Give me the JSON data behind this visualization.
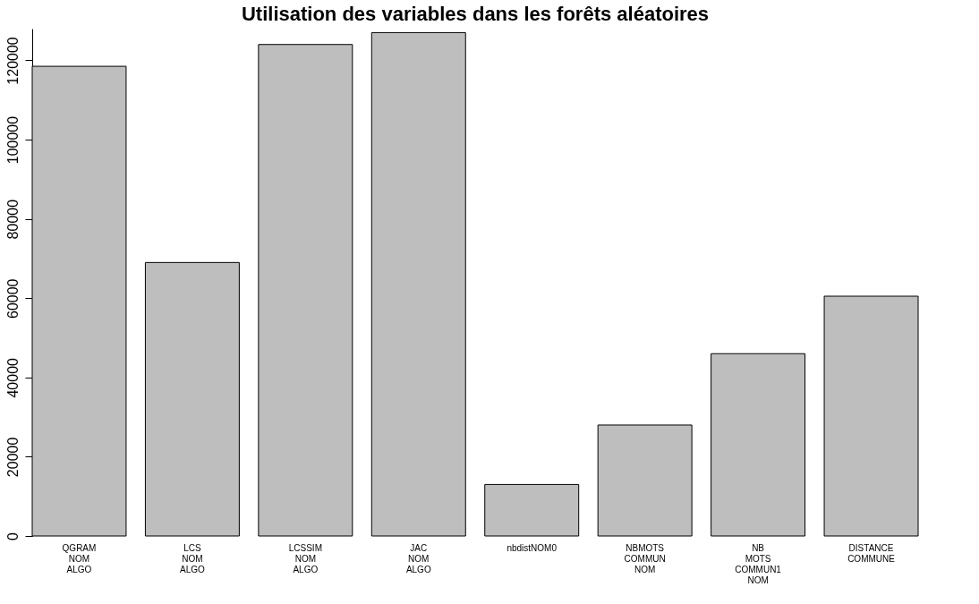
{
  "chart_data": {
    "type": "bar",
    "title": "Utilisation des variables dans les forêts aléatoires",
    "categories": [
      "QGRAM\nNOM\nALGO",
      "LCS\nNOM\nALGO",
      "LCSSIM\nNOM\nALGO",
      "JAC\nNOM\nALGO",
      "nbdistNOM0",
      "NBMOTS\nCOMMUN\nNOM",
      "NB\nMOTS\nCOMMUN1\nNOM",
      "DISTANCE\nCOMMUNE"
    ],
    "values": [
      118500,
      69000,
      124000,
      127000,
      13000,
      28000,
      46000,
      60500
    ],
    "color": "#bebebe",
    "ylim": [
      0,
      128000
    ],
    "yticks": [
      0,
      20000,
      40000,
      60000,
      80000,
      100000,
      120000
    ],
    "grid": false
  }
}
